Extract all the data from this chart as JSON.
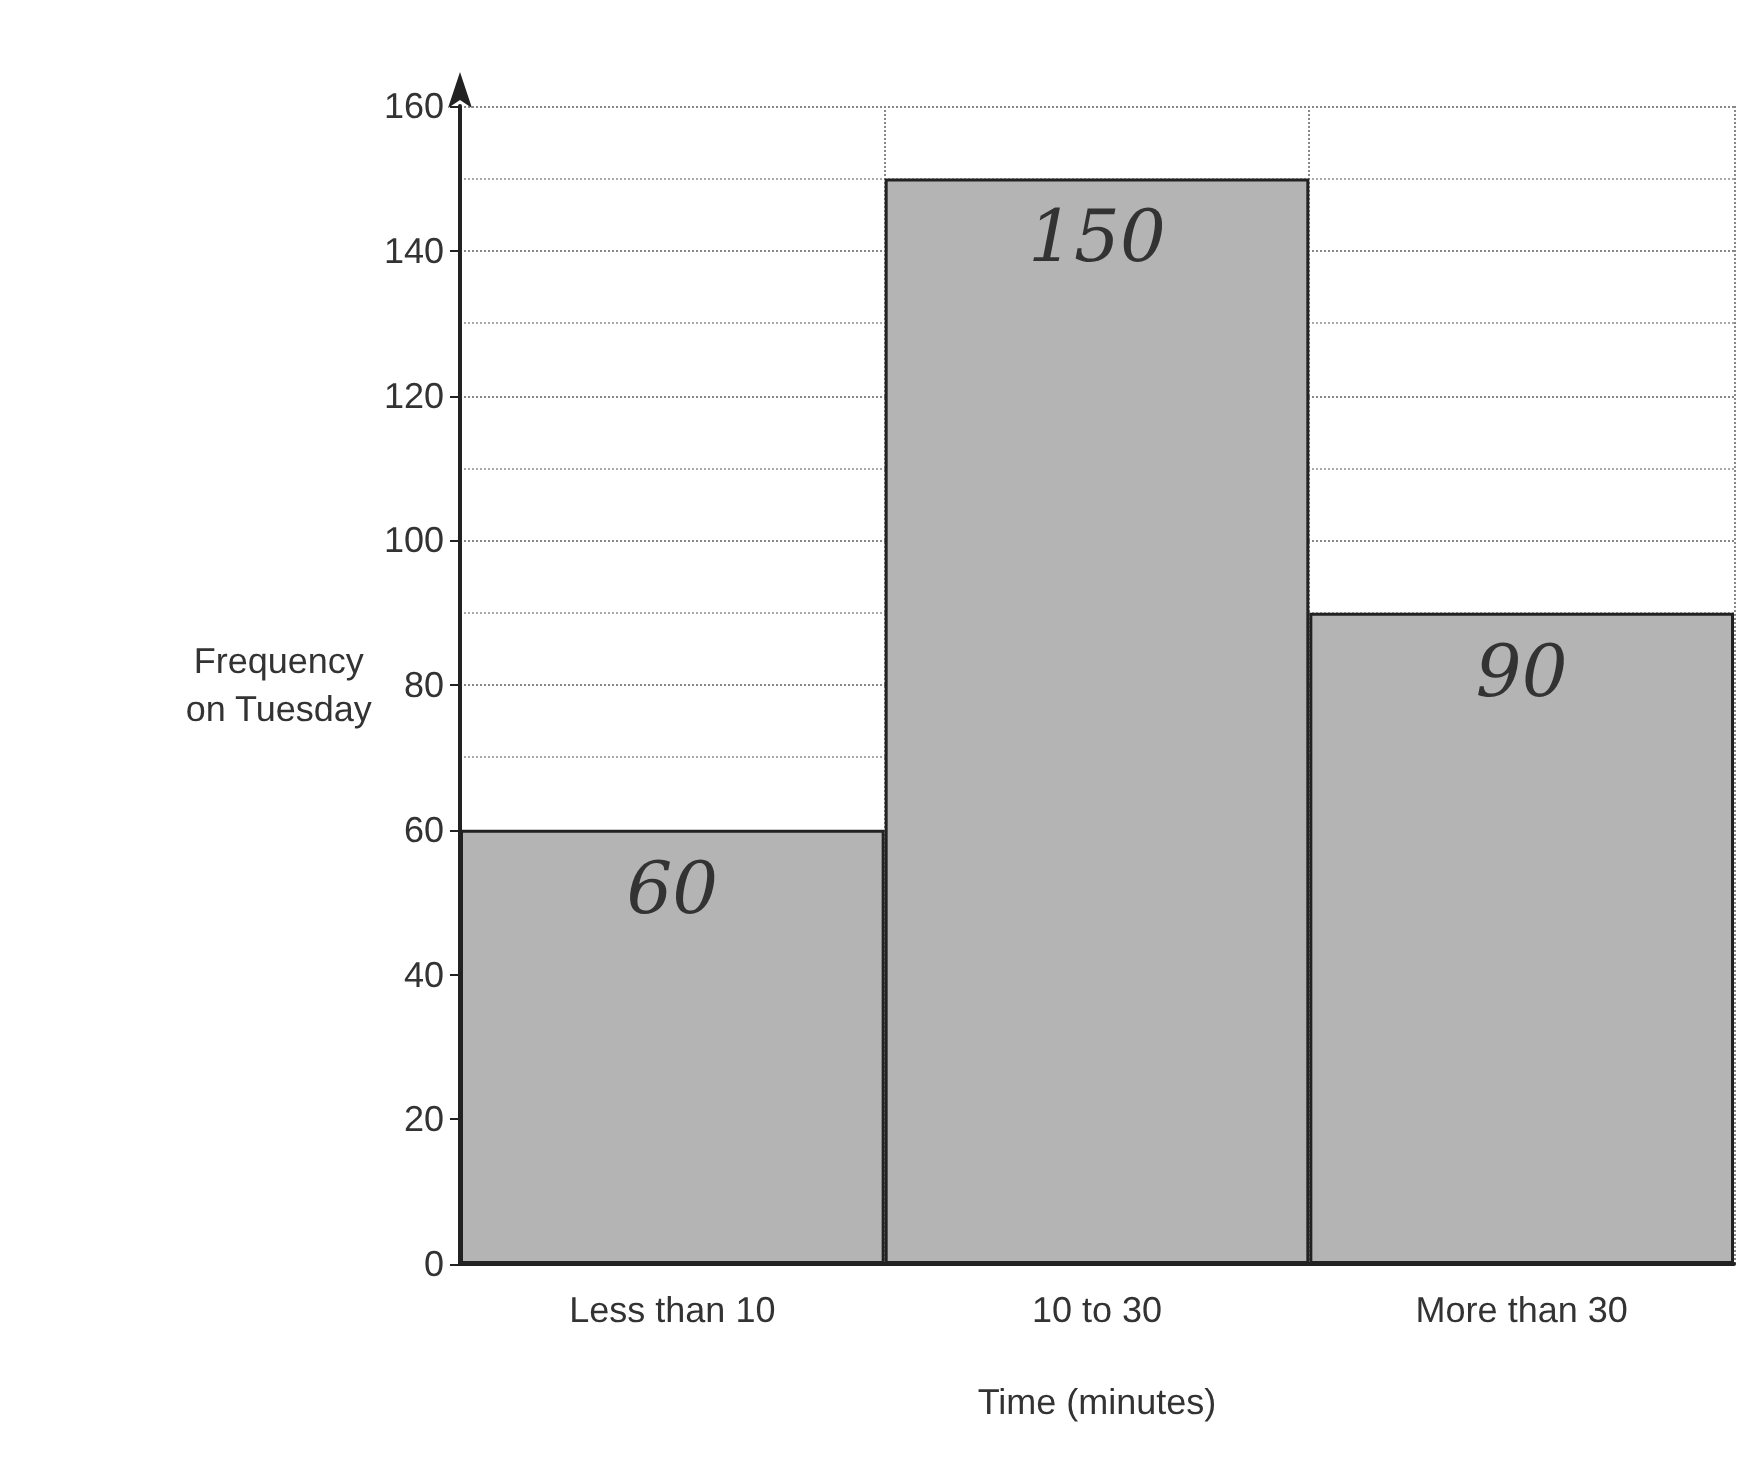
{
  "chart_data": {
    "type": "bar",
    "xlabel": "Time (minutes)",
    "ylabel": "Frequency\non Tuesday",
    "categories": [
      "Less than 10",
      "10 to 30",
      "More than 30"
    ],
    "values": [
      60,
      150,
      90
    ],
    "color": "#b4b4b4",
    "ylim": [
      0,
      160
    ],
    "yticks": [
      0,
      20,
      40,
      60,
      80,
      100,
      120,
      140,
      160
    ],
    "grid": true,
    "data_labels": true
  }
}
